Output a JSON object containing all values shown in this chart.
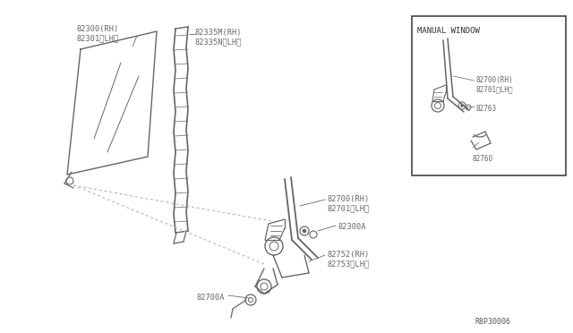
{
  "bg_color": "#ffffff",
  "line_color": "#666666",
  "text_color": "#666666",
  "fig_width": 6.4,
  "fig_height": 3.72,
  "diagram_number": "R8P30006",
  "inset_title": "MANUAL WINDOW",
  "labels": {
    "82300_rh": "82300(RH)",
    "82301_lh": "82301〈LH〉",
    "82335m_rh": "82335M(RH)",
    "82335n_lh": "82335N〈LH〉",
    "82700_rh_main": "82700(RH)",
    "82701_lh_main": "82701〈LH〉",
    "82300a": "82300A",
    "82752_rh": "82752(RH)",
    "82753_lh": "82753〈LH〉",
    "82700a": "82700A",
    "82700_rh_inset": "82700(RH)",
    "82701_lh_inset": "82701〈LH〉",
    "82763": "82763",
    "82760": "82760"
  }
}
